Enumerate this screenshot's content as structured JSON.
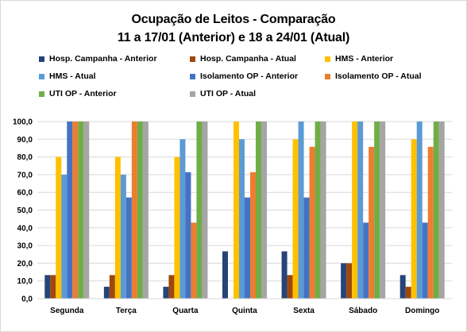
{
  "title_line1": "Ocupação de Leitos - Comparação",
  "title_line2": "11 a 17/01 (Anterior) e 18 a 24/01 (Atual)",
  "chart_data": {
    "type": "bar",
    "categories": [
      "Segunda",
      "Terça",
      "Quarta",
      "Quinta",
      "Sexta",
      "Sábado",
      "Domingo"
    ],
    "ylim": [
      0,
      100
    ],
    "yticks": [
      "0,0",
      "10,0",
      "20,0",
      "30,0",
      "40,0",
      "50,0",
      "60,0",
      "70,0",
      "80,0",
      "90,0",
      "100,0"
    ],
    "grid": true,
    "legend_position": "top",
    "series": [
      {
        "name": "Hosp. Campanha - Anterior",
        "color": "#264478",
        "values": [
          13.3,
          6.7,
          6.7,
          26.7,
          26.7,
          20.0,
          13.3
        ]
      },
      {
        "name": "Hosp. Campanha - Atual",
        "color": "#9e480e",
        "values": [
          13.3,
          13.3,
          13.3,
          0,
          13.3,
          20.0,
          6.7
        ]
      },
      {
        "name": "HMS - Anterior",
        "color": "#ffc000",
        "values": [
          80,
          80,
          80,
          100,
          90,
          100,
          90
        ]
      },
      {
        "name": "HMS - Atual",
        "color": "#5b9bd5",
        "values": [
          70,
          70,
          90,
          90,
          100,
          100,
          100
        ]
      },
      {
        "name": "Isolamento OP - Anterior",
        "color": "#4472c4",
        "values": [
          100,
          57.1,
          71.4,
          57.1,
          57.1,
          42.9,
          42.9
        ]
      },
      {
        "name": "Isolamento OP - Atual",
        "color": "#ed7d31",
        "values": [
          100,
          100,
          42.9,
          71.4,
          85.7,
          85.7,
          85.7
        ]
      },
      {
        "name": "UTI OP - Anterior",
        "color": "#70ad47",
        "values": [
          100,
          100,
          100,
          100,
          100,
          100,
          100
        ]
      },
      {
        "name": "UTI OP - Atual",
        "color": "#a5a5a5",
        "values": [
          100,
          100,
          100,
          100,
          100,
          100,
          100
        ]
      }
    ]
  }
}
